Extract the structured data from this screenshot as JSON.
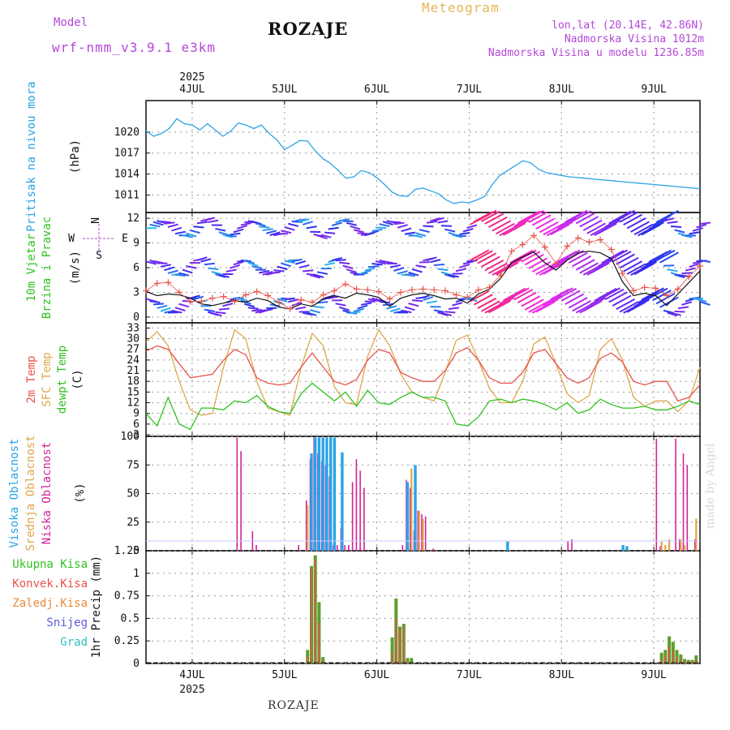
{
  "header": {
    "model_label": "Model",
    "model_name": "wrf-nmm_v3.9.1 e3km",
    "station": "ROZAJE",
    "meteogram": "Meteogram",
    "lonlat": "lon,lat (20.14E, 42.86N)",
    "elevation": "Nadmorska Visina 1012m",
    "model_elevation": "Nadmorska Visina u modelu 1236.85m"
  },
  "footer": {
    "station": "ROZAJE",
    "watermark": "made by Angel"
  },
  "colors": {
    "pressure": "#2aa3e6",
    "temp2m": "#e8524a",
    "sfc": "#e0a64a",
    "dew": "#2fc21f",
    "high": "#2aa3e6",
    "mid": "#e0a64a",
    "low": "#d0249a",
    "precip": "#5aa02a",
    "conv": "#e8524a",
    "wind": "#111111",
    "gust": "#e8524a",
    "label_purple": "#b347d9"
  },
  "chart_data": [
    {
      "type": "line",
      "name": "pressure",
      "ylabel_main": "Pritisak na nivou mora",
      "ylabel_unit": "(hPa)",
      "yticks": [
        1011,
        1014,
        1017,
        1020
      ],
      "ylim": [
        1008.5,
        1024.5
      ],
      "x_unit": "hours since 2025-07-03 12:00",
      "xlim": [
        0,
        144
      ],
      "series": [
        {
          "name": "Pritisak",
          "x": [
            0,
            2,
            4,
            6,
            8,
            10,
            12,
            14,
            16,
            18,
            20,
            22,
            24,
            26,
            28,
            30,
            32,
            34,
            36,
            38,
            40,
            42,
            44,
            46,
            48,
            50,
            52,
            54,
            56,
            58,
            60,
            62,
            64,
            66,
            68,
            70,
            72,
            74,
            76,
            78,
            80,
            82,
            84,
            86,
            88,
            90,
            92,
            94,
            96,
            98,
            100,
            102,
            104,
            106,
            108,
            110,
            112,
            114,
            116,
            118,
            120,
            122,
            124,
            126,
            128,
            130,
            132,
            134,
            136,
            138,
            140,
            142,
            144
          ],
          "values": [
            1020.2,
            1019.4,
            1019.8,
            1020.5,
            1021.9,
            1021.2,
            1021.0,
            1020.3,
            1021.2,
            1020.3,
            1019.4,
            1020.1,
            1021.3,
            1021.0,
            1020.5,
            1021.0,
            1019.8,
            1018.9,
            1017.5,
            1018.1,
            1018.8,
            1018.7,
            1017.3,
            1016.2,
            1015.5,
            1014.5,
            1013.4,
            1013.6,
            1014.5,
            1014.2,
            1013.5,
            1012.5,
            1011.4,
            1010.9,
            1010.8,
            1011.8,
            1012.0,
            1011.6,
            1011.2,
            1010.3,
            1009.8,
            1010.0,
            1009.9,
            1010.3,
            1010.8,
            1012.5,
            1013.8,
            1014.5,
            1015.2,
            1015.9,
            1015.6,
            1014.7,
            1014.2,
            1014.0,
            1013.8,
            1013.6,
            1013.5,
            1013.4,
            1013.3,
            1013.2,
            1013.1,
            1013.0,
            1012.9,
            1012.8,
            1012.7,
            1012.6,
            1012.5,
            1012.4,
            1012.3,
            1012.2,
            1012.1,
            1012.0,
            1011.9
          ]
        }
      ]
    },
    {
      "type": "line",
      "name": "wind",
      "ylabel_main": "10m Vjetar",
      "ylabel_sub": "Brzina i Pravac",
      "ylabel_unit": "(m/s)",
      "compass": {
        "n": "N",
        "w": "W",
        "e": "E",
        "s": "S"
      },
      "yticks": [
        0,
        3,
        6,
        9,
        12
      ],
      "ylim": [
        -0.5,
        12.5
      ],
      "xlim": [
        0,
        144
      ],
      "series": [
        {
          "name": "Brzina",
          "values": [
            3.1,
            2.6,
            2.8,
            2.7,
            2.3,
            1.6,
            1.4,
            1.7,
            2.0,
            1.8,
            2.3,
            2.0,
            1.2,
            1.0,
            1.6,
            1.3,
            2.2,
            2.6,
            2.3,
            2.9,
            2.7,
            2.4,
            1.3,
            2.3,
            2.7,
            2.9,
            2.6,
            2.2,
            2.3,
            1.7,
            2.8,
            3.4,
            4.7,
            6.6,
            7.3,
            7.9,
            6.6,
            5.7,
            6.9,
            7.8,
            8.0,
            7.8,
            7.1,
            4.3,
            2.6,
            2.9,
            2.6,
            1.4,
            2.8,
            4.2,
            5.6
          ]
        },
        {
          "name": "Udari",
          "values": [
            3.2,
            4.1,
            4.2,
            3.0,
            1.9,
            1.9,
            2.3,
            2.5,
            1.9,
            2.7,
            3.1,
            2.6,
            1.8,
            1.0,
            2.1,
            1.8,
            2.7,
            3.2,
            4.0,
            3.4,
            3.3,
            3.1,
            2.2,
            3.0,
            3.3,
            3.4,
            3.3,
            3.2,
            2.7,
            2.4,
            3.3,
            3.6,
            5.1,
            8.0,
            8.8,
            9.9,
            8.5,
            6.5,
            8.6,
            9.6,
            9.1,
            9.4,
            8.2,
            5.3,
            3.2,
            3.6,
            3.5,
            2.6,
            3.4,
            4.9,
            6.2
          ]
        }
      ]
    },
    {
      "type": "line",
      "name": "temperature",
      "ylabel_1": "2m Temp",
      "ylabel_2": "SFC Temp",
      "ylabel_3": "dewpt Temp",
      "ylabel_unit": "(C)",
      "yticks": [
        3,
        6,
        9,
        12,
        15,
        18,
        21,
        24,
        27,
        30,
        33
      ],
      "ylim": [
        3,
        34
      ],
      "xlim": [
        0,
        144
      ],
      "series": [
        {
          "name": "2m Temp",
          "values": [
            26.5,
            28.0,
            27.0,
            23.0,
            19.0,
            19.5,
            20.0,
            24.0,
            27.0,
            25.5,
            19.0,
            17.5,
            17.0,
            17.5,
            22.0,
            26.0,
            22.0,
            18.0,
            17.0,
            18.5,
            24.0,
            27.0,
            26.0,
            20.5,
            19.0,
            18.0,
            18.0,
            21.0,
            26.0,
            27.5,
            24.0,
            19.0,
            17.5,
            17.5,
            20.5,
            26.0,
            27.0,
            23.0,
            19.0,
            17.5,
            19.0,
            24.5,
            26.0,
            23.5,
            18.0,
            17.0,
            18.0,
            18.0,
            12.5,
            13.5,
            17.0
          ]
        },
        {
          "name": "SFC Temp",
          "values": [
            29.0,
            32.0,
            28.0,
            18.0,
            10.0,
            8.5,
            9.0,
            22.0,
            32.5,
            30.0,
            18.0,
            10.5,
            9.5,
            8.5,
            22.0,
            31.5,
            28.0,
            16.5,
            12.0,
            11.5,
            25.0,
            32.5,
            28.0,
            20.0,
            15.0,
            13.5,
            12.5,
            20.5,
            29.5,
            31.0,
            24.0,
            16.0,
            12.0,
            12.0,
            18.0,
            28.5,
            30.5,
            23.0,
            14.5,
            12.0,
            14.0,
            27.0,
            30.0,
            24.0,
            13.5,
            11.0,
            12.5,
            12.5,
            9.5,
            12.5,
            22.0
          ]
        },
        {
          "name": "dewpt Temp",
          "values": [
            9.0,
            5.5,
            13.5,
            6.0,
            4.5,
            10.5,
            10.5,
            10.0,
            12.5,
            12.0,
            14.0,
            11.0,
            9.5,
            9.0,
            14.5,
            17.5,
            15.0,
            12.5,
            15.0,
            11.0,
            15.5,
            12.0,
            11.5,
            13.5,
            15.0,
            13.5,
            13.5,
            12.5,
            6.0,
            5.5,
            8.0,
            12.5,
            13.0,
            12.0,
            13.0,
            12.5,
            11.5,
            10.0,
            12.0,
            9.0,
            10.0,
            13.0,
            11.5,
            10.5,
            10.5,
            11.0,
            10.0,
            10.0,
            11.0,
            12.5,
            11.5
          ]
        }
      ]
    },
    {
      "type": "bar",
      "name": "cloud",
      "ylabel_1": "Visoka Oblacnost",
      "ylabel_2": "Srednja Oblacnost",
      "ylabel_3": "Niska Oblacnost",
      "ylabel_unit": "(%)",
      "yticks": [
        0,
        25,
        50,
        75,
        100
      ],
      "ylim": [
        0,
        100
      ],
      "xlim": [
        0,
        144
      ],
      "series": [
        {
          "name": "Niska",
          "x": [
            24,
            25,
            28,
            29,
            40,
            42,
            43,
            44,
            45,
            46,
            47,
            48,
            49,
            50,
            51,
            52,
            53,
            54,
            55,
            56,
            57,
            67,
            68,
            69,
            70,
            71,
            72,
            73,
            75,
            110,
            111,
            133,
            134,
            138,
            139,
            140,
            141,
            143
          ],
          "values": [
            99,
            87,
            17,
            5,
            5,
            44,
            80,
            99,
            85,
            78,
            75,
            65,
            5,
            5,
            20,
            5,
            5,
            60,
            80,
            70,
            55,
            5,
            62,
            55,
            18,
            35,
            32,
            30,
            2,
            8,
            10,
            98,
            4,
            98,
            10,
            85,
            75,
            10
          ]
        },
        {
          "name": "Srednja",
          "x": [
            42,
            43,
            44,
            45,
            46,
            47,
            68,
            69,
            70,
            71,
            72,
            134,
            135,
            136,
            139,
            140,
            143
          ],
          "values": [
            40,
            85,
            90,
            92,
            65,
            60,
            55,
            72,
            45,
            35,
            28,
            8,
            5,
            10,
            10,
            5,
            28
          ]
        },
        {
          "name": "Visoka",
          "x": [
            43,
            44,
            45,
            46,
            47,
            48,
            49,
            51,
            68,
            70,
            94,
            124,
            125
          ],
          "values": [
            85,
            99,
            99,
            99,
            99,
            99,
            99,
            86,
            60,
            75,
            8,
            5,
            4
          ]
        }
      ]
    },
    {
      "type": "bar",
      "name": "precipitation",
      "ylabels": [
        "Ukupna Kisa",
        "Konvek.Kisa",
        "Zaledj.Kisa",
        "Snijeg",
        "Grad"
      ],
      "ylabel_unit": "1hr Precip (mm)",
      "yticks": [
        0,
        0.25,
        0.5,
        0.75,
        1,
        1.25
      ],
      "ylim": [
        0,
        1.25
      ],
      "xlim": [
        0,
        144
      ],
      "series": [
        {
          "name": "Ukupna Kisa",
          "x": [
            42,
            43,
            44,
            45,
            46,
            64,
            65,
            66,
            67,
            68,
            69,
            70,
            71,
            72,
            134,
            135,
            136,
            137,
            138,
            139,
            140,
            141,
            142,
            143
          ],
          "values": [
            0.15,
            1.08,
            1.2,
            0.68,
            0.07,
            0.29,
            0.72,
            0.41,
            0.44,
            0.06,
            0.06,
            0,
            0,
            0,
            0.12,
            0.15,
            0.3,
            0.24,
            0.15,
            0.1,
            0.05,
            0.04,
            0.04,
            0.09
          ]
        },
        {
          "name": "Konvek.Kisa",
          "x": [
            42,
            43,
            44,
            45,
            46,
            64,
            65,
            66,
            67,
            68,
            134,
            135,
            136,
            137,
            138,
            139,
            140,
            141,
            142,
            143
          ],
          "values": [
            0.08,
            1.05,
            1.15,
            0.45,
            0.04,
            0.12,
            0.5,
            0.38,
            0.42,
            0.04,
            0.05,
            0.1,
            0.2,
            0.15,
            0.08,
            0.05,
            0.03,
            0.02,
            0.02,
            0.05
          ]
        }
      ]
    }
  ],
  "x_axis": {
    "year_label": "2025",
    "day_labels": [
      "4JUL",
      "5JUL",
      "6JUL",
      "7JUL",
      "8JUL",
      "9JUL"
    ],
    "day_hours": [
      12,
      36,
      60,
      84,
      108,
      132
    ]
  }
}
